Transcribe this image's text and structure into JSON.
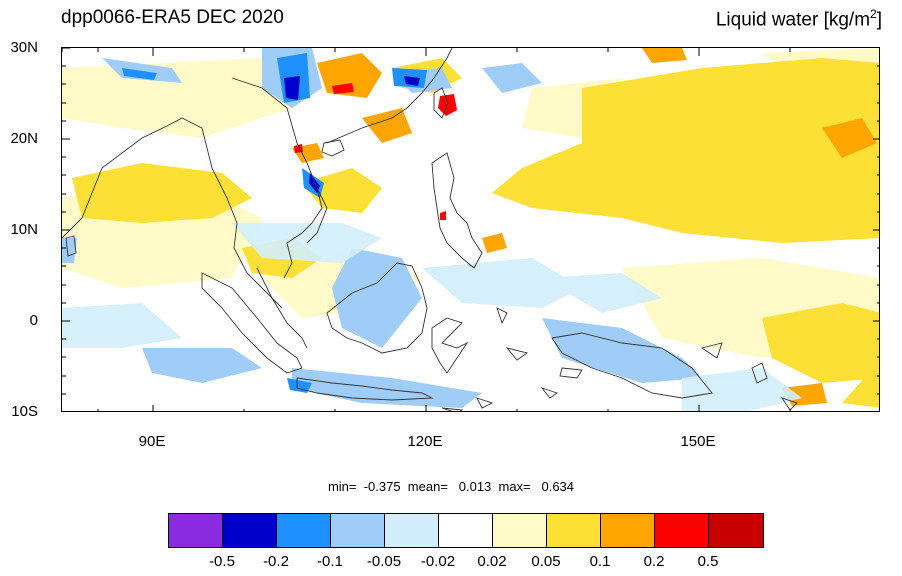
{
  "header": {
    "title_left": "dpp0066-ERA5 DEC 2020",
    "title_right_main": "Liquid water  [kg/m",
    "title_right_sup": "2",
    "title_right_end": "]"
  },
  "map": {
    "lat_labels": [
      "30N",
      "20N",
      "10N",
      "0",
      "10S"
    ],
    "lon_labels": [
      "90E",
      "120E",
      "150E"
    ],
    "stats_text": "min=  -0.375  mean=   0.013  max=   0.634",
    "colors": {
      "purple": "#8a2be2",
      "dark_blue": "#0000cd",
      "blue": "#1e90ff",
      "light_blue": "#a0cdf8",
      "pale_blue": "#d2eefc",
      "white": "#ffffff",
      "pale_yellow": "#fffac8",
      "yellow": "#fde036",
      "orange": "#ffa500",
      "red": "#ff0000",
      "dark_red": "#c80000"
    }
  },
  "colorbar": {
    "colors": [
      "#8a2be2",
      "#0000cd",
      "#1e90ff",
      "#a0cdf8",
      "#d2eefc",
      "#ffffff",
      "#fffac8",
      "#fde036",
      "#ffa500",
      "#ff0000",
      "#c80000"
    ],
    "labels": [
      "-0.5",
      "-0.2",
      "-0.1",
      "-0.05",
      "-0.02",
      "0.02",
      "0.05",
      "0.1",
      "0.2",
      "0.5"
    ]
  }
}
